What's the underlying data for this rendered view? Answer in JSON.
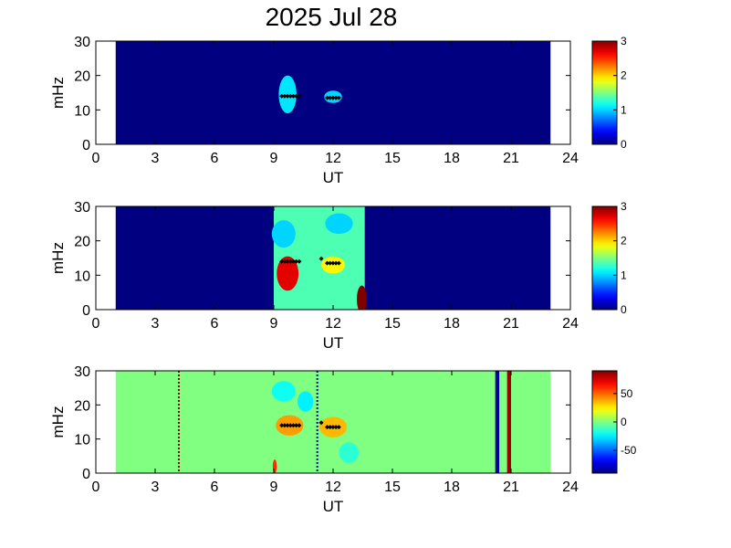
{
  "title": "2025 Jul 28",
  "chart_data": [
    {
      "type": "heatmap",
      "xlabel": "UT",
      "ylabel": "mHz",
      "xlim": [
        0,
        24
      ],
      "ylim": [
        0,
        30
      ],
      "xticks": [
        0,
        3,
        6,
        9,
        12,
        15,
        18,
        21,
        24
      ],
      "yticks": [
        0,
        10,
        20,
        30
      ],
      "data_x_range": [
        1,
        23
      ],
      "background_value": 0,
      "colorbar": {
        "min": 0,
        "max": 3,
        "ticks": [
          0,
          1,
          2,
          3
        ],
        "colormap": "jet"
      },
      "blobs": [
        {
          "x_center": 9.7,
          "y_center": 14.5,
          "x_half_width": 0.45,
          "y_half_width": 5.5,
          "value": 1.05
        },
        {
          "x_center": 12.0,
          "y_center": 13.8,
          "x_half_width": 0.45,
          "y_half_width": 1.8,
          "value": 1.0
        }
      ],
      "markers": [
        {
          "x_start": 9.4,
          "x_end": 10.3,
          "y": 14
        },
        {
          "x_start": 11.7,
          "x_end": 12.4,
          "y": 13.5
        }
      ]
    },
    {
      "type": "heatmap",
      "xlabel": "UT",
      "ylabel": "mHz",
      "xlim": [
        0,
        24
      ],
      "ylim": [
        0,
        30
      ],
      "xticks": [
        0,
        3,
        6,
        9,
        12,
        15,
        18,
        21,
        24
      ],
      "yticks": [
        0,
        10,
        20,
        30
      ],
      "data_x_range": [
        1,
        23
      ],
      "background_value": 0,
      "active_x_range": [
        9.0,
        13.6
      ],
      "active_value": 1.35,
      "colorbar": {
        "min": 0,
        "max": 3,
        "ticks": [
          0,
          1,
          2,
          3
        ],
        "colormap": "jet"
      },
      "blobs": [
        {
          "x_center": 9.7,
          "y_center": 10.5,
          "x_half_width": 0.55,
          "y_half_width": 5,
          "value": 2.7
        },
        {
          "x_center": 13.45,
          "y_center": 3,
          "x_half_width": 0.25,
          "y_half_width": 4,
          "value": 3.0
        },
        {
          "x_center": 9.5,
          "y_center": 22,
          "x_half_width": 0.6,
          "y_half_width": 4,
          "value": 1.0
        },
        {
          "x_center": 12.3,
          "y_center": 25,
          "x_half_width": 0.7,
          "y_half_width": 3,
          "value": 1.0
        },
        {
          "x_center": 12.0,
          "y_center": 13,
          "x_half_width": 0.6,
          "y_half_width": 2.5,
          "value": 1.9
        }
      ],
      "markers": [
        {
          "x_start": 9.4,
          "x_end": 10.3,
          "y": 14
        },
        {
          "x_start": 11.4,
          "x_end": 11.5,
          "y": 14.8
        },
        {
          "x_start": 11.7,
          "x_end": 12.4,
          "y": 13.5
        }
      ]
    },
    {
      "type": "heatmap",
      "xlabel": "UT",
      "ylabel": "mHz",
      "xlim": [
        0,
        24
      ],
      "ylim": [
        0,
        30
      ],
      "xticks": [
        0,
        3,
        6,
        9,
        12,
        15,
        18,
        21,
        24
      ],
      "yticks": [
        0,
        10,
        20,
        30
      ],
      "data_x_range": [
        1,
        23
      ],
      "background_value": 0,
      "active_x_range": [
        9.0,
        13.6
      ],
      "active_value": 0,
      "colorbar": {
        "min": -90,
        "max": 90,
        "ticks": [
          -50,
          0,
          50
        ],
        "colormap": "jet"
      },
      "blobs": [
        {
          "x_center": 9.8,
          "y_center": 14,
          "x_half_width": 0.7,
          "y_half_width": 3,
          "value": 40
        },
        {
          "x_center": 12.0,
          "y_center": 13.5,
          "x_half_width": 0.7,
          "y_half_width": 3,
          "value": 35
        },
        {
          "x_center": 9.5,
          "y_center": 24,
          "x_half_width": 0.6,
          "y_half_width": 3,
          "value": -20
        },
        {
          "x_center": 10.6,
          "y_center": 21,
          "x_half_width": 0.4,
          "y_half_width": 3,
          "value": -25
        },
        {
          "x_center": 12.8,
          "y_center": 6,
          "x_half_width": 0.5,
          "y_half_width": 3,
          "value": -15
        },
        {
          "x_center": 9.05,
          "y_center": 2,
          "x_half_width": 0.1,
          "y_half_width": 2,
          "value": 60
        }
      ],
      "vertical_lines": [
        {
          "x": 4.2,
          "width": 0.08,
          "value": 85,
          "style": "dotted"
        },
        {
          "x": 11.2,
          "width": 0.08,
          "value": -85,
          "style": "dotted"
        },
        {
          "x": 20.2,
          "width": 0.2,
          "value": -85,
          "style": "solid"
        },
        {
          "x": 20.8,
          "width": 0.2,
          "value": 85,
          "style": "solid"
        }
      ],
      "markers": [
        {
          "x_start": 9.4,
          "x_end": 10.3,
          "y": 14
        },
        {
          "x_start": 11.4,
          "x_end": 11.5,
          "y": 14.8
        },
        {
          "x_start": 11.7,
          "x_end": 12.4,
          "y": 13.5
        }
      ]
    }
  ]
}
